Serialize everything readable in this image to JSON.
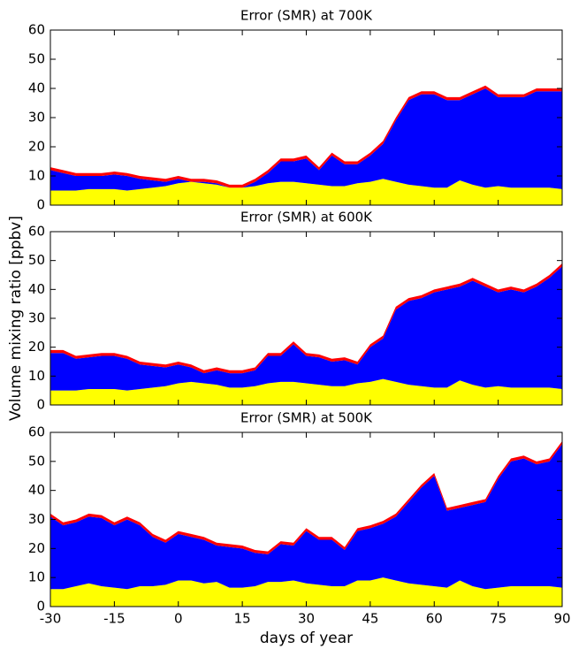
{
  "chart_data": [
    {
      "type": "stacked_area",
      "title": "Error (SMR) at 700K",
      "x": [
        -30,
        -27,
        -24,
        -21,
        -18,
        -15,
        -12,
        -9,
        -6,
        -3,
        0,
        3,
        6,
        9,
        12,
        15,
        18,
        21,
        24,
        27,
        30,
        33,
        36,
        39,
        42,
        45,
        48,
        51,
        54,
        57,
        60,
        63,
        66,
        69,
        72,
        75,
        78,
        81,
        84,
        87,
        90
      ],
      "series": [
        {
          "color": "#ffff00",
          "values": [
            5,
            5,
            5,
            5.5,
            5.5,
            5.5,
            5,
            5.5,
            6,
            6.5,
            7.5,
            8,
            7.5,
            7,
            6,
            6,
            6.5,
            7.5,
            8,
            8,
            7.5,
            7,
            6.5,
            6.5,
            7.5,
            8,
            9,
            8,
            7,
            6.5,
            6,
            6,
            8.5,
            7,
            6,
            6.5,
            6,
            6,
            6,
            6,
            5.5
          ]
        },
        {
          "color": "#0000ff",
          "values": [
            7,
            6,
            5,
            4.5,
            4.5,
            5,
            5,
            3.5,
            2.5,
            1.5,
            1.5,
            0,
            0.5,
            0.5,
            0,
            0,
            1.5,
            3.5,
            7,
            7,
            8.5,
            5,
            10.5,
            7.5,
            6.5,
            9,
            12,
            21,
            29,
            31.5,
            32,
            30,
            27.5,
            31,
            34,
            30.5,
            31,
            31,
            33,
            33,
            33.5
          ]
        },
        {
          "color": "#ff0000",
          "values": [
            1,
            1,
            1,
            1,
            1,
            1,
            1,
            1,
            1,
            1,
            1,
            1,
            1,
            1,
            1,
            1,
            1,
            1,
            1,
            1,
            1,
            1,
            1,
            1,
            1,
            1,
            1,
            1,
            1,
            1,
            1,
            1,
            1,
            1,
            1,
            1,
            1,
            1,
            1,
            1,
            1
          ]
        }
      ],
      "xlim": [
        -30,
        90
      ],
      "xticks": [
        -30,
        -15,
        0,
        15,
        30,
        45,
        60,
        75,
        90
      ],
      "show_xtick_labels": false,
      "ylim": [
        0,
        60
      ],
      "yticks": [
        0,
        10,
        20,
        30,
        40,
        50,
        60
      ]
    },
    {
      "type": "stacked_area",
      "title": "Error (SMR) at 600K",
      "ylabel": "Volume mixing ratio [ppbv]",
      "x": [
        -30,
        -27,
        -24,
        -21,
        -18,
        -15,
        -12,
        -9,
        -6,
        -3,
        0,
        3,
        6,
        9,
        12,
        15,
        18,
        21,
        24,
        27,
        30,
        33,
        36,
        39,
        42,
        45,
        48,
        51,
        54,
        57,
        60,
        63,
        66,
        69,
        72,
        75,
        78,
        81,
        84,
        87,
        90
      ],
      "series": [
        {
          "color": "#ffff00",
          "values": [
            5,
            5,
            5,
            5.5,
            5.5,
            5.5,
            5,
            5.5,
            6,
            6.5,
            7.5,
            8,
            7.5,
            7,
            6,
            6,
            6.5,
            7.5,
            8,
            8,
            7.5,
            7,
            6.5,
            6.5,
            7.5,
            8,
            9,
            8,
            7,
            6.5,
            6,
            6,
            8.5,
            7,
            6,
            6.5,
            6,
            6,
            6,
            6,
            5.5
          ]
        },
        {
          "color": "#0000ff",
          "values": [
            13,
            13,
            11,
            11,
            11.5,
            11.5,
            11,
            8.5,
            7.5,
            6.5,
            6.5,
            5,
            3.5,
            5,
            5,
            5,
            5.5,
            9.5,
            9,
            13,
            9.5,
            9.5,
            8.5,
            9,
            6.5,
            12,
            14,
            25,
            29,
            30.5,
            33,
            34,
            32.5,
            36,
            35,
            32.5,
            34,
            33,
            35,
            38,
            42.5
          ]
        },
        {
          "color": "#ff0000",
          "values": [
            1,
            1,
            1,
            1,
            1,
            1,
            1,
            1,
            1,
            1,
            1,
            1,
            1,
            1,
            1,
            1,
            1,
            1,
            1,
            1,
            1,
            1,
            1,
            1,
            1,
            1,
            1,
            1,
            1,
            1,
            1,
            1,
            1,
            1,
            1,
            1,
            1,
            1,
            1,
            1,
            1
          ]
        }
      ],
      "xlim": [
        -30,
        90
      ],
      "xticks": [
        -30,
        -15,
        0,
        15,
        30,
        45,
        60,
        75,
        90
      ],
      "show_xtick_labels": false,
      "ylim": [
        0,
        60
      ],
      "yticks": [
        0,
        10,
        20,
        30,
        40,
        50,
        60
      ]
    },
    {
      "type": "stacked_area",
      "title": "Error (SMR) at 500K",
      "xlabel": "days of year",
      "x": [
        -30,
        -27,
        -24,
        -21,
        -18,
        -15,
        -12,
        -9,
        -6,
        -3,
        0,
        3,
        6,
        9,
        12,
        15,
        18,
        21,
        24,
        27,
        30,
        33,
        36,
        39,
        42,
        45,
        48,
        51,
        54,
        57,
        60,
        63,
        66,
        69,
        72,
        75,
        78,
        81,
        84,
        87,
        90
      ],
      "series": [
        {
          "color": "#ffff00",
          "values": [
            6,
            6,
            7,
            8,
            7,
            6.5,
            6,
            7,
            7,
            7.5,
            9,
            9,
            8,
            8.5,
            6.5,
            6.5,
            7,
            8.5,
            8.5,
            9,
            8,
            7.5,
            7,
            7,
            9,
            9,
            10,
            9,
            8,
            7.5,
            7,
            6.5,
            9,
            7,
            6,
            6.5,
            7,
            7,
            7,
            7,
            6.5
          ]
        },
        {
          "color": "#0000ff",
          "values": [
            25,
            22,
            22,
            23,
            23.5,
            21.5,
            24,
            21,
            17,
            14.5,
            16,
            15,
            15,
            12.5,
            14,
            13.5,
            11.5,
            9.5,
            13,
            12,
            18,
            15.5,
            16,
            12.5,
            17,
            18,
            18.5,
            22,
            28,
            33.5,
            38,
            26.5,
            25,
            28,
            30,
            37.5,
            43,
            44,
            42,
            43,
            49.5
          ]
        },
        {
          "color": "#ff0000",
          "values": [
            1,
            1,
            1,
            1,
            1,
            1,
            1,
            1,
            1,
            1,
            1,
            1,
            1,
            1,
            1,
            1,
            1,
            1,
            1,
            1,
            1,
            1,
            1,
            1,
            1,
            1,
            1,
            1,
            1,
            1,
            1,
            1,
            1,
            1,
            1,
            1,
            1,
            1,
            1,
            1,
            1
          ]
        }
      ],
      "xlim": [
        -30,
        90
      ],
      "xticks": [
        -30,
        -15,
        0,
        15,
        30,
        45,
        60,
        75,
        90
      ],
      "show_xtick_labels": true,
      "ylim": [
        0,
        60
      ],
      "yticks": [
        0,
        10,
        20,
        30,
        40,
        50,
        60
      ]
    }
  ]
}
